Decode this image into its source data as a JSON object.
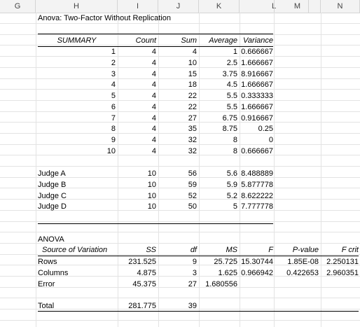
{
  "columns": [
    "G",
    "H",
    "I",
    "J",
    "K",
    "L",
    "M",
    "N"
  ],
  "title": "Anova: Two-Factor Without Replication",
  "summary": {
    "headers": [
      "SUMMARY",
      "Count",
      "Sum",
      "Average",
      "Variance"
    ],
    "rows": [
      [
        "1",
        "4",
        "4",
        "1",
        "0.666667"
      ],
      [
        "2",
        "4",
        "10",
        "2.5",
        "1.666667"
      ],
      [
        "3",
        "4",
        "15",
        "3.75",
        "8.916667"
      ],
      [
        "4",
        "4",
        "18",
        "4.5",
        "1.666667"
      ],
      [
        "5",
        "4",
        "22",
        "5.5",
        "0.333333"
      ],
      [
        "6",
        "4",
        "22",
        "5.5",
        "1.666667"
      ],
      [
        "7",
        "4",
        "27",
        "6.75",
        "0.916667"
      ],
      [
        "8",
        "4",
        "35",
        "8.75",
        "0.25"
      ],
      [
        "9",
        "4",
        "32",
        "8",
        "0"
      ],
      [
        "10",
        "4",
        "32",
        "8",
        "0.666667"
      ]
    ],
    "judges": [
      [
        "Judge A",
        "10",
        "56",
        "5.6",
        "8.488889"
      ],
      [
        "Judge B",
        "10",
        "59",
        "5.9",
        "5.877778"
      ],
      [
        "Judge C",
        "10",
        "52",
        "5.2",
        "8.622222"
      ],
      [
        "Judge D",
        "10",
        "50",
        "5",
        "7.777778"
      ]
    ]
  },
  "anova": {
    "label": "ANOVA",
    "headers": [
      "Source of Variation",
      "SS",
      "df",
      "MS",
      "F",
      "P-value",
      "F crit"
    ],
    "rows": [
      [
        "Rows",
        "231.525",
        "9",
        "25.725",
        "15.30744",
        "1.85E-08",
        "2.250131"
      ],
      [
        "Columns",
        "4.875",
        "3",
        "1.625",
        "0.966942",
        "0.422653",
        "2.960351"
      ],
      [
        "Error",
        "45.375",
        "27",
        "1.680556",
        "",
        "",
        ""
      ]
    ],
    "total": [
      "Total",
      "281.775",
      "39",
      "",
      "",
      "",
      ""
    ]
  }
}
